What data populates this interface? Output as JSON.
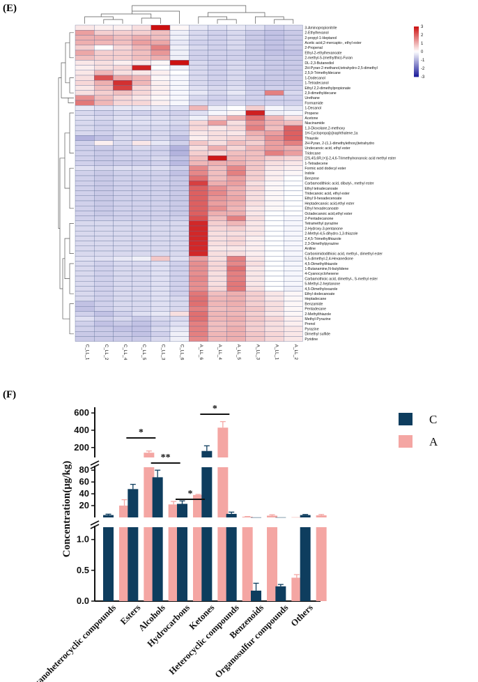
{
  "panels": {
    "heatmap_label": "(E)",
    "bar_label": "(F)"
  },
  "colors": {
    "neg": "#1a1a9a",
    "mid": "#ffffff",
    "pos": "#cc1010",
    "series_c": "#0e3d5e",
    "series_a": "#f4a6a3",
    "grid": "#5b6b94"
  },
  "chart_data": [
    {
      "type": "heatmap",
      "title": "(E)",
      "columns": [
        "C_LL_1",
        "C_LL_2",
        "C_LL_4",
        "C_LL_5",
        "C_LL_3",
        "C_LL_6",
        "A_LL_6",
        "A_LL_4",
        "A_LL_5",
        "A_LL_3",
        "A_LL_1",
        "A_LL_2"
      ],
      "rows": [
        "3-Aminopropionitrile",
        "2-Ethylhexanol",
        "2-propyl-1-Heptanol",
        "Acetic acid,2-mercapto-, ethyl ester",
        "2-Propenal",
        "Ethyl-2-ethylhexanoate",
        "2-methyl-5-(methylthio)-Furan",
        "DL-2,3-Butanediol",
        "2H-Pyran-2-methanol,tetrahydro-2,5-dimethyl",
        "2,5,9-Trimethyldecane",
        "1-Dodecanol",
        "1-Tetradecanol",
        "Ethyl 2,2-dimethylpropionate",
        "2,9-dimethyldecane",
        "Urethane",
        "Formamide",
        "1-Decanol",
        "Propene",
        "Acetone",
        "Niacinamide",
        "1,3-Dioxolane,2-methoxy",
        "1H-Cyclopropa[a]naphthalene,1a",
        "Thiazole",
        "2H-Pyran, 2-(1,1-dimethylethoxy)tetrahydro",
        "Undecanoic acid, ethyl ester",
        "Tridecane",
        "[2S,4S,6R,(+)]-2,4,6-Trimethylnonanoic acid methyl ester",
        "1-Tetradecene",
        "Formic acid dodecyl ester",
        "Indole",
        "Benzene",
        "Carbamodithioic acid, dibutyl-, methyl ester",
        "Ethyl tetradecanoate",
        "Tridecanoic acid, ethyl ester",
        "Ethyl 9-hexadecenoate",
        "Heptadecanoic acid,ethyl ester",
        "Ethyl hexadecanoate",
        "Octadecanoic acid,ethyl ester",
        "2-Pentadecanone",
        "Tetramethyl pyrazine",
        "2-Hydroxy-3-pentanone",
        "2-Methyl-4,5-dihydro-1,3-thiazole",
        "2,4,5-Trimethylthiazole",
        "2,3-Dimethylpyrazine",
        "Aniline",
        "Carbonimidodithioic acid, methyl-, dimethyl ester",
        "5,5-dimethyl-2,4-Hexanedione",
        "4,5-Dimethylthiazole",
        "1-Butanamine,N-butylidene",
        "4-Cyanocyclohexene",
        "Carbamothioic acid, dimethyl-, S-methyl ester",
        "5-Methyl-2-heptanone",
        "4,5-Dimethyloxazole",
        "Ethyl dodecanoate",
        "Heptadecane",
        "Benzamide",
        "Pentadecane",
        "2-Methylthiazole",
        "Methyl-Pyrazine",
        "Prenol",
        "Pyrazine",
        "Dimethyl sulfide",
        "Pyridine"
      ],
      "colorbar": {
        "ticks": [
          3,
          2,
          1,
          0,
          -1,
          -2,
          -3
        ],
        "range": [
          -3,
          3
        ]
      },
      "values": [
        [
          0.3,
          0.2,
          0.2,
          0.4,
          3.0,
          0.1,
          -0.3,
          -0.4,
          -0.3,
          -0.4,
          -0.6,
          -0.5
        ],
        [
          1.2,
          0.6,
          0.6,
          0.6,
          0.8,
          -0.2,
          -0.5,
          -0.6,
          -0.5,
          -0.7,
          -0.8,
          -0.7
        ],
        [
          1.0,
          1.0,
          0.8,
          1.0,
          0.8,
          -0.2,
          -0.5,
          -0.6,
          -0.5,
          -0.7,
          -0.8,
          -0.7
        ],
        [
          1.0,
          0.9,
          0.8,
          1.2,
          1.1,
          -0.3,
          -0.6,
          -0.6,
          -0.5,
          -0.7,
          -0.8,
          -0.7
        ],
        [
          0.6,
          0.0,
          0.5,
          0.9,
          1.6,
          -0.2,
          -0.5,
          -0.6,
          -0.5,
          -0.7,
          -0.8,
          -0.7
        ],
        [
          1.1,
          0.6,
          0.6,
          0.8,
          1.3,
          -0.2,
          -0.6,
          -0.6,
          -0.6,
          -0.7,
          -0.8,
          -0.8
        ],
        [
          0.8,
          0.6,
          0.6,
          0.8,
          1.0,
          -0.2,
          -0.6,
          -0.6,
          -0.6,
          -0.7,
          -0.7,
          -0.7
        ],
        [
          0.3,
          0.4,
          0.2,
          0.3,
          0.1,
          3.0,
          -0.5,
          -0.6,
          -0.5,
          -0.6,
          -0.7,
          -0.7
        ],
        [
          0.2,
          0.4,
          0.5,
          2.8,
          0.0,
          -0.2,
          -0.5,
          -0.6,
          -0.5,
          -0.6,
          -0.7,
          -0.7
        ],
        [
          0.3,
          0.9,
          0.4,
          0.3,
          0.2,
          0.0,
          -0.5,
          -0.6,
          -0.5,
          -0.6,
          -0.7,
          -0.7
        ],
        [
          0.4,
          2.2,
          1.1,
          0.9,
          0.1,
          -0.1,
          -0.5,
          -0.6,
          -0.5,
          -0.7,
          -0.7,
          -0.7
        ],
        [
          0.5,
          1.0,
          2.6,
          0.9,
          0.2,
          -0.1,
          -0.5,
          -0.6,
          -0.5,
          -0.7,
          -0.7,
          -0.7
        ],
        [
          0.3,
          0.8,
          2.4,
          0.5,
          0.2,
          -0.1,
          -0.4,
          -0.5,
          -0.4,
          -0.6,
          -0.6,
          -0.6
        ],
        [
          0.4,
          0.6,
          0.8,
          0.5,
          0.2,
          -0.1,
          -0.3,
          -0.5,
          -0.3,
          -0.6,
          1.6,
          -0.5
        ],
        [
          1.4,
          0.8,
          0.5,
          0.3,
          0.1,
          -0.1,
          -0.5,
          -0.6,
          -0.5,
          -0.6,
          -0.6,
          -0.6
        ],
        [
          1.7,
          0.9,
          0.5,
          0.5,
          0.2,
          -0.1,
          -0.5,
          -0.6,
          -0.5,
          -0.6,
          -0.6,
          -0.6
        ],
        [
          -0.3,
          -0.4,
          -0.3,
          -0.3,
          -0.3,
          -0.4,
          0.9,
          -0.2,
          0.0,
          0.6,
          -0.1,
          -0.3
        ],
        [
          -0.5,
          -0.6,
          -0.5,
          -0.6,
          -0.5,
          -0.6,
          -0.4,
          -0.1,
          0.1,
          2.8,
          -0.2,
          -0.1
        ],
        [
          -0.4,
          -0.5,
          -0.4,
          -0.4,
          -0.4,
          -0.5,
          -0.2,
          0.5,
          1.0,
          1.8,
          0.9,
          0.4
        ],
        [
          -0.5,
          -0.6,
          -0.4,
          -0.4,
          -0.4,
          -0.5,
          0.5,
          1.2,
          0.4,
          1.4,
          0.9,
          0.8
        ],
        [
          -0.5,
          -0.6,
          -0.5,
          -0.5,
          -0.5,
          -0.6,
          0.5,
          0.3,
          0.5,
          1.6,
          0.8,
          2.0
        ],
        [
          -0.5,
          -0.6,
          -0.5,
          -0.5,
          -0.5,
          -0.6,
          0.3,
          0.4,
          0.3,
          1.0,
          1.2,
          2.0
        ],
        [
          -1.0,
          -0.8,
          -0.5,
          -0.6,
          -0.5,
          -0.8,
          0.2,
          0.4,
          0.5,
          0.8,
          1.4,
          2.0
        ],
        [
          -0.6,
          0.2,
          -0.5,
          0.3,
          -0.3,
          -0.6,
          0.7,
          0.4,
          0.8,
          0.6,
          1.2,
          1.6
        ],
        [
          -0.6,
          -0.7,
          -0.6,
          -0.5,
          -0.6,
          -1.0,
          0.4,
          1.0,
          0.5,
          0.9,
          1.2,
          1.0
        ],
        [
          -0.6,
          -0.7,
          -0.6,
          -0.6,
          -0.6,
          -1.0,
          0.6,
          0.5,
          0.8,
          0.8,
          1.6,
          1.2
        ],
        [
          -0.6,
          -0.7,
          -0.6,
          -0.6,
          -0.5,
          -0.8,
          0.8,
          2.9,
          0.9,
          0.8,
          0.6,
          0.5
        ],
        [
          -0.6,
          -0.7,
          -0.7,
          -0.7,
          -0.6,
          -0.9,
          0.9,
          1.0,
          1.0,
          0.7,
          0.4,
          0.3
        ],
        [
          -0.4,
          -0.5,
          -0.4,
          -0.4,
          -0.4,
          -0.6,
          1.5,
          0.8,
          1.5,
          0.7,
          0.3,
          0.2
        ],
        [
          -0.6,
          -0.7,
          -0.6,
          -0.6,
          -0.6,
          -0.8,
          1.5,
          0.8,
          1.6,
          0.6,
          0.2,
          0.1
        ],
        [
          -0.6,
          -0.7,
          -0.6,
          -0.6,
          -0.6,
          -0.7,
          1.8,
          0.8,
          1.2,
          0.6,
          0.2,
          0.0
        ],
        [
          -0.6,
          -0.7,
          -0.6,
          -0.6,
          -0.6,
          -0.7,
          2.4,
          1.0,
          1.2,
          0.4,
          0.1,
          0.0
        ],
        [
          -0.6,
          -0.7,
          -0.6,
          -0.6,
          -0.6,
          -0.7,
          2.0,
          1.4,
          1.0,
          0.5,
          0.1,
          0.0
        ],
        [
          -0.6,
          -0.7,
          -0.6,
          -0.6,
          -0.6,
          -0.7,
          2.0,
          1.5,
          1.0,
          0.4,
          0.1,
          0.0
        ],
        [
          -0.6,
          -0.7,
          -0.6,
          -0.6,
          -0.6,
          -0.7,
          2.0,
          1.3,
          1.1,
          0.4,
          0.1,
          0.0
        ],
        [
          -0.6,
          -0.7,
          -0.6,
          -0.6,
          -0.6,
          -0.7,
          2.0,
          1.2,
          1.0,
          0.4,
          0.1,
          0.0
        ],
        [
          -0.6,
          -0.7,
          -0.6,
          -0.6,
          -0.6,
          -0.7,
          2.0,
          1.4,
          0.9,
          0.3,
          0.1,
          0.0
        ],
        [
          -0.6,
          -0.7,
          -0.6,
          -0.6,
          -0.6,
          -0.7,
          2.0,
          1.0,
          1.0,
          0.3,
          0.0,
          0.0
        ],
        [
          -0.6,
          -0.6,
          -0.6,
          -0.6,
          -0.6,
          -0.6,
          2.2,
          0.8,
          1.6,
          0.4,
          0.0,
          -0.1
        ],
        [
          -0.5,
          -0.5,
          -0.5,
          -0.5,
          -0.5,
          -0.5,
          2.7,
          0.6,
          0.9,
          0.3,
          0.0,
          -0.1
        ],
        [
          -0.5,
          -0.5,
          -0.5,
          -0.5,
          -0.5,
          -0.5,
          2.7,
          0.5,
          0.6,
          0.3,
          0.0,
          -0.1
        ],
        [
          -0.5,
          -0.5,
          -0.5,
          -0.5,
          -0.5,
          -0.5,
          2.7,
          0.4,
          0.4,
          0.3,
          0.0,
          -0.1
        ],
        [
          -0.5,
          -0.5,
          -0.5,
          -0.5,
          -0.5,
          -0.5,
          2.7,
          0.4,
          0.5,
          0.2,
          0.0,
          -0.1
        ],
        [
          -0.5,
          -0.5,
          -0.5,
          -0.5,
          -0.5,
          -0.5,
          2.7,
          0.4,
          0.5,
          0.2,
          0.0,
          -0.1
        ],
        [
          -0.5,
          -0.5,
          -0.5,
          -0.5,
          -0.5,
          -0.5,
          2.7,
          0.3,
          0.3,
          0.2,
          0.0,
          -0.1
        ],
        [
          -0.5,
          -0.5,
          -0.5,
          -0.5,
          -0.5,
          -0.5,
          2.7,
          0.4,
          0.4,
          0.2,
          0.0,
          -0.1
        ],
        [
          -0.4,
          -0.4,
          -0.3,
          -0.2,
          0.7,
          -0.4,
          1.2,
          0.4,
          1.6,
          0.3,
          0.0,
          -0.2
        ],
        [
          -0.5,
          -0.6,
          -0.5,
          -0.5,
          -0.4,
          -0.6,
          1.4,
          0.5,
          1.5,
          0.4,
          0.0,
          -0.1
        ],
        [
          -0.5,
          -0.6,
          -0.5,
          -0.5,
          -0.4,
          -0.6,
          1.4,
          0.5,
          1.8,
          0.3,
          0.0,
          -0.1
        ],
        [
          -0.5,
          -0.6,
          -0.5,
          -0.5,
          -0.4,
          -0.6,
          1.4,
          0.4,
          1.6,
          0.3,
          0.0,
          -0.1
        ],
        [
          -0.5,
          -0.6,
          -0.5,
          -0.5,
          -0.4,
          -0.6,
          1.5,
          0.4,
          1.6,
          0.3,
          0.0,
          -0.1
        ],
        [
          -0.5,
          -0.6,
          -0.5,
          -0.5,
          -0.4,
          -0.6,
          1.4,
          0.4,
          1.7,
          0.3,
          0.0,
          -0.1
        ],
        [
          -0.5,
          -0.6,
          -0.5,
          -0.5,
          -0.4,
          -0.6,
          1.4,
          0.5,
          1.7,
          0.4,
          0.0,
          -0.2
        ],
        [
          -0.5,
          -0.6,
          -0.5,
          -0.5,
          -0.4,
          -0.6,
          1.7,
          0.8,
          1.0,
          0.6,
          0.3,
          0.1
        ],
        [
          -0.5,
          -0.6,
          -0.5,
          -0.5,
          -0.4,
          -0.5,
          1.8,
          0.9,
          1.0,
          0.6,
          0.3,
          0.1
        ],
        [
          -0.8,
          -0.6,
          -0.5,
          -0.5,
          -0.4,
          -0.5,
          1.8,
          0.9,
          1.0,
          0.6,
          0.4,
          0.1
        ],
        [
          -0.8,
          -0.6,
          -0.5,
          -0.5,
          -0.4,
          -0.5,
          1.6,
          0.8,
          0.9,
          0.7,
          0.4,
          0.1
        ],
        [
          -0.6,
          -0.8,
          -0.6,
          -0.4,
          -0.3,
          0.4,
          1.8,
          0.9,
          0.9,
          0.6,
          0.3,
          0.1
        ],
        [
          -0.4,
          -0.6,
          -0.5,
          -0.7,
          -0.5,
          -0.5,
          1.8,
          0.9,
          1.0,
          0.7,
          0.5,
          0.2
        ],
        [
          -0.6,
          -0.8,
          -0.7,
          -0.8,
          -0.6,
          -0.4,
          1.6,
          0.8,
          0.9,
          0.6,
          0.4,
          0.2
        ],
        [
          -0.6,
          -0.7,
          -0.8,
          -0.8,
          -0.5,
          -0.3,
          1.6,
          0.8,
          1.0,
          0.6,
          0.4,
          0.3
        ],
        [
          -0.7,
          -0.7,
          -0.7,
          -0.8,
          -0.6,
          -0.2,
          1.6,
          0.9,
          1.0,
          0.7,
          0.5,
          0.3
        ],
        [
          -0.7,
          -0.7,
          -0.7,
          -0.7,
          -0.5,
          -0.2,
          1.5,
          0.9,
          1.0,
          0.7,
          0.5,
          0.3
        ]
      ]
    },
    {
      "type": "bar",
      "title": "(F)",
      "ylabel": "Concentration(μg/kg)",
      "categories": [
        "Organoheterocyclic compounds",
        "Esters",
        "Alcohols",
        "Hydrocarbons",
        "Ketones",
        "Heterocyclic compounds",
        "Benzenoids",
        "Organosulfur compounds",
        "Others"
      ],
      "segments": [
        {
          "name": "low",
          "range": [
            0,
            1.2
          ],
          "ticks": [
            "0.0",
            "0.5",
            "1.0"
          ]
        },
        {
          "name": "mid",
          "range": [
            0,
            85
          ],
          "ticks": [
            "20",
            "40",
            "60",
            "80"
          ]
        },
        {
          "name": "high",
          "range": [
            85,
            650
          ],
          "ticks": [
            "200",
            "400",
            "600"
          ]
        }
      ],
      "series": [
        {
          "name": "C",
          "values": [
            4,
            48,
            68,
            23,
            160,
            6,
            0.17,
            0.24,
            4
          ],
          "errors": [
            1.5,
            8,
            12,
            5,
            60,
            3,
            0.12,
            0.03,
            1
          ]
        },
        {
          "name": "A",
          "values": [
            20,
            140,
            22,
            38,
            430,
            1.2,
            3,
            0.38,
            3.5
          ],
          "errors": [
            10,
            20,
            5,
            1,
            70,
            0.3,
            1.5,
            0.05,
            1.5
          ]
        }
      ],
      "significance": [
        {
          "category": "Esters",
          "mark": "*"
        },
        {
          "category": "Alcohols",
          "mark": "**"
        },
        {
          "category": "Hydrocarbons",
          "mark": "*"
        },
        {
          "category": "Ketones",
          "mark": "*"
        }
      ],
      "legend": [
        "C",
        "A"
      ]
    }
  ]
}
